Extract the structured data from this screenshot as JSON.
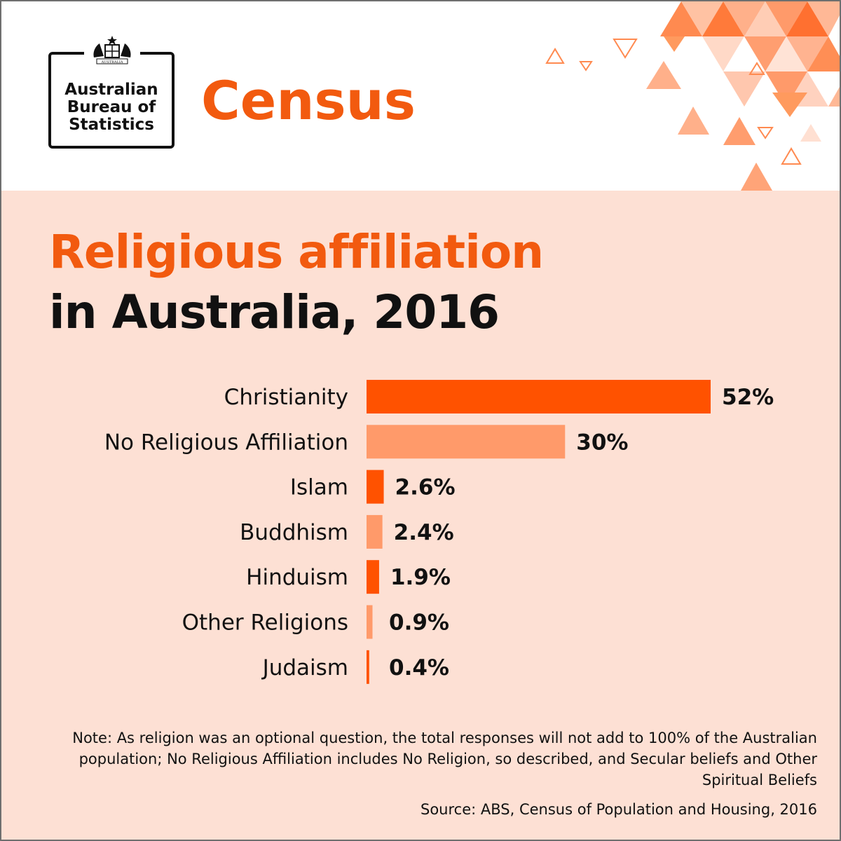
{
  "header": {
    "logo_lines": [
      "Australian",
      "Bureau of",
      "Statistics"
    ],
    "crest_label": "AUSTRALIA",
    "census_label": "Census"
  },
  "title": {
    "line1": "Religious affiliation",
    "line2": "in Australia, 2016"
  },
  "colors": {
    "accent_dark": "#ff5200",
    "accent_light": "#ff9a6a",
    "panel_bg": "#fde0d4"
  },
  "chart_data": {
    "type": "bar",
    "orientation": "horizontal",
    "title": "Religious affiliation in Australia, 2016",
    "categories": [
      "Christianity",
      "No Religious Affiliation",
      "Islam",
      "Buddhism",
      "Hinduism",
      "Other Religions",
      "Judaism"
    ],
    "values": [
      52,
      30,
      2.6,
      2.4,
      1.9,
      0.9,
      0.4
    ],
    "value_labels": [
      "52%",
      "30%",
      "2.6%",
      "2.4%",
      "1.9%",
      "0.9%",
      "0.4%"
    ],
    "unit": "%",
    "grid": false,
    "legend": "none"
  },
  "footer": {
    "note": "Note: As religion was an optional question, the total responses will not add to 100% of the Australian population; No Religious Affiliation includes No Religion, so described, and Secular beliefs and Other Spiritual Beliefs",
    "source": "Source: ABS, Census of Population and Housing, 2016"
  }
}
